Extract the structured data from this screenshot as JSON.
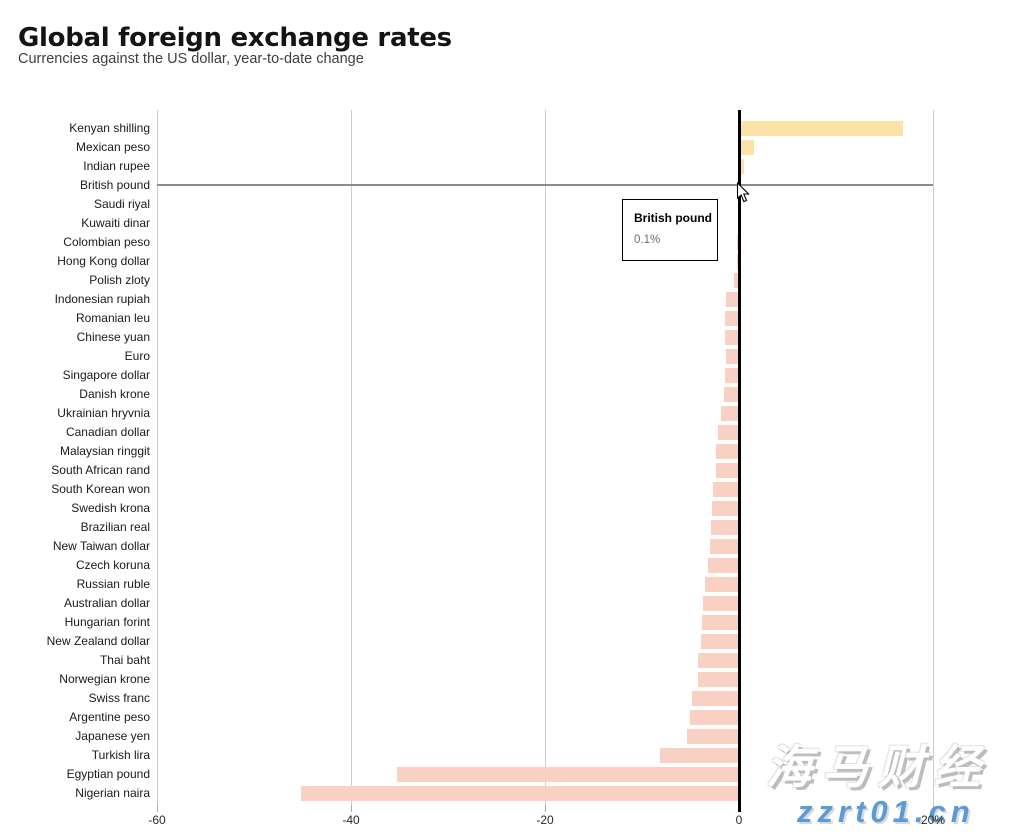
{
  "header": {
    "title": "Global foreign exchange rates",
    "subtitle": "Currencies against the US dollar, year-to-date change"
  },
  "chart_data": {
    "type": "bar",
    "orientation": "horizontal",
    "title": "Global foreign exchange rates",
    "subtitle": "Currencies against the US dollar, year-to-date change",
    "value_unit": "%",
    "xlim": [
      -60,
      20
    ],
    "xticks": [
      {
        "value": -60,
        "label": "-60"
      },
      {
        "value": -40,
        "label": "-40"
      },
      {
        "value": -20,
        "label": "-20"
      },
      {
        "value": 0,
        "label": "0"
      },
      {
        "value": 20,
        "label": "20%"
      }
    ],
    "grid": "vertical",
    "legend": "none",
    "categories": [
      "Kenyan shilling",
      "Mexican peso",
      "Indian rupee",
      "British pound",
      "Saudi riyal",
      "Kuwaiti dinar",
      "Colombian peso",
      "Hong Kong dollar",
      "Polish zloty",
      "Indonesian rupiah",
      "Romanian leu",
      "Chinese yuan",
      "Euro",
      "Singapore dollar",
      "Danish krone",
      "Ukrainian hryvnia",
      "Canadian dollar",
      "Malaysian ringgit",
      "South African rand",
      "South Korean won",
      "Swedish krona",
      "Brazilian real",
      "New Taiwan dollar",
      "Czech koruna",
      "Russian ruble",
      "Australian dollar",
      "Hungarian forint",
      "New Zealand dollar",
      "Thai baht",
      "Norwegian krone",
      "Swiss franc",
      "Argentine peso",
      "Japanese yen",
      "Turkish lira",
      "Egyptian pound",
      "Nigerian naira"
    ],
    "values": [
      16.9,
      1.5,
      0.5,
      0.1,
      0.0,
      -0.1,
      -0.2,
      -0.2,
      -0.5,
      -1.3,
      -1.4,
      -1.4,
      -1.3,
      -1.4,
      -1.5,
      -1.9,
      -2.2,
      -2.4,
      -2.4,
      -2.7,
      -2.8,
      -2.9,
      -3.0,
      -3.2,
      -3.5,
      -3.7,
      -3.8,
      -3.9,
      -4.2,
      -4.2,
      -4.8,
      -5.1,
      -5.4,
      -8.1,
      -35.3,
      -45.2
    ],
    "colors": {
      "positive_bar": "#fbe2a7",
      "negative_bar": "#f9d0c4",
      "zero_line": "#000000",
      "gridline": "#cccccc",
      "hover_line": "#8c8c8c"
    },
    "hovered_category": "British pound"
  },
  "tooltip": {
    "title": "British pound",
    "value": "0.1%"
  },
  "watermark": {
    "brand": "海马财经",
    "site": "zzrt01.cn",
    "site_color": "#5b9bd5"
  }
}
